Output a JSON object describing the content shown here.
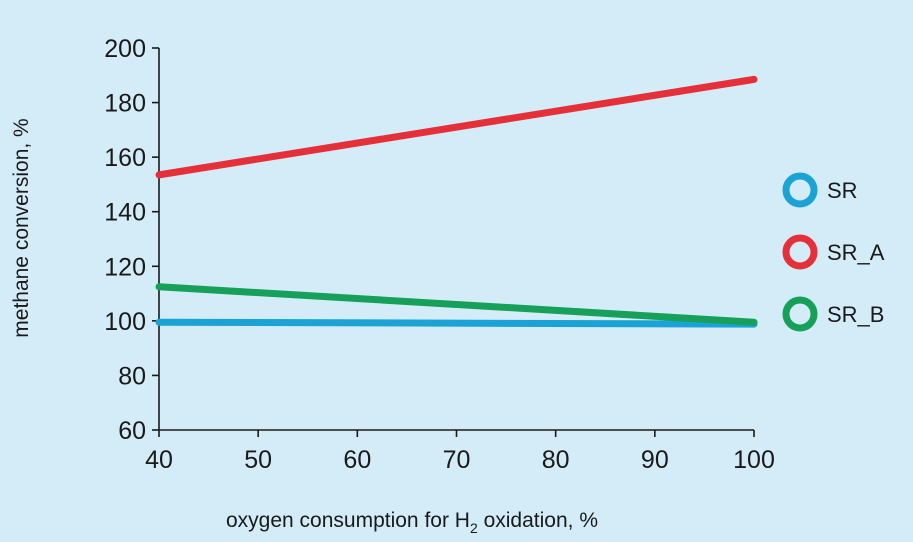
{
  "chart_data": {
    "type": "line",
    "title": "",
    "xlabel_pre": "oxygen consumption for H",
    "xlabel_sub": "2",
    "xlabel_post": " oxidation, %",
    "ylabel": "methane conversion, %",
    "xlim": [
      40,
      100
    ],
    "ylim": [
      60,
      200
    ],
    "xticks": [
      40,
      50,
      60,
      70,
      80,
      90,
      100
    ],
    "yticks": [
      60,
      80,
      100,
      120,
      140,
      160,
      180,
      200
    ],
    "grid": false,
    "legend_position": "right",
    "series": [
      {
        "name": "SR",
        "color": "#1aa3d4",
        "x": [
          40,
          100
        ],
        "y": [
          99.5,
          98.8
        ]
      },
      {
        "name": "SR_A",
        "color": "#e5303a",
        "x": [
          40,
          100
        ],
        "y": [
          153.5,
          188.5
        ]
      },
      {
        "name": "SR_B",
        "color": "#16a05a",
        "x": [
          40,
          100
        ],
        "y": [
          112.5,
          99.5
        ]
      }
    ]
  }
}
